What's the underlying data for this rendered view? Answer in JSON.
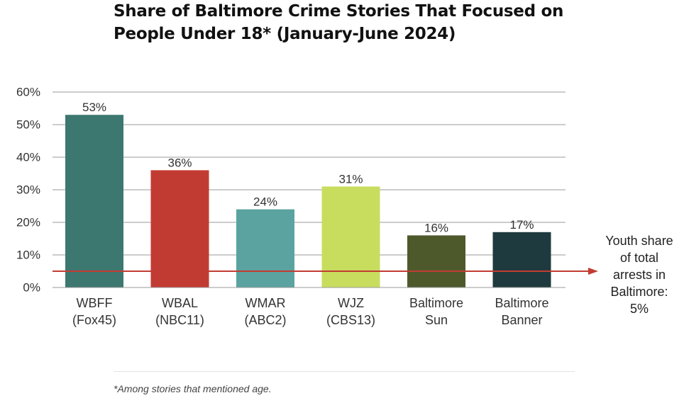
{
  "title_lines": [
    "Share of Baltimore Crime Stories That Focused on",
    "People Under 18* (January-June 2024)"
  ],
  "footnote": "*Among stories that mentioned age.",
  "reference_note_lines": [
    "Youth share",
    "of total",
    "arrests in",
    "Baltimore:",
    "5%"
  ],
  "chart_data": {
    "type": "bar",
    "categories": [
      [
        "WBFF",
        "(Fox45)"
      ],
      [
        "WBAL",
        "(NBC11)"
      ],
      [
        "WMAR",
        "(ABC2)"
      ],
      [
        "WJZ",
        "(CBS13)"
      ],
      [
        "Baltimore",
        "Sun"
      ],
      [
        "Baltimore",
        "Banner"
      ]
    ],
    "values": [
      53,
      36,
      24,
      31,
      16,
      17
    ],
    "data_labels": [
      "53%",
      "36%",
      "24%",
      "31%",
      "16%",
      "17%"
    ],
    "colors": [
      "#3c7870",
      "#c23b32",
      "#5aa3a0",
      "#c8dd5e",
      "#4d592b",
      "#1e3a3e"
    ],
    "yticks": [
      0,
      10,
      20,
      30,
      40,
      50,
      60
    ],
    "ytick_labels": [
      "0%",
      "10%",
      "20%",
      "30%",
      "40%",
      "50%",
      "60%"
    ],
    "ylim": [
      0,
      60
    ],
    "grid": true,
    "reference_line": {
      "value": 5,
      "color": "#c23b32"
    }
  }
}
